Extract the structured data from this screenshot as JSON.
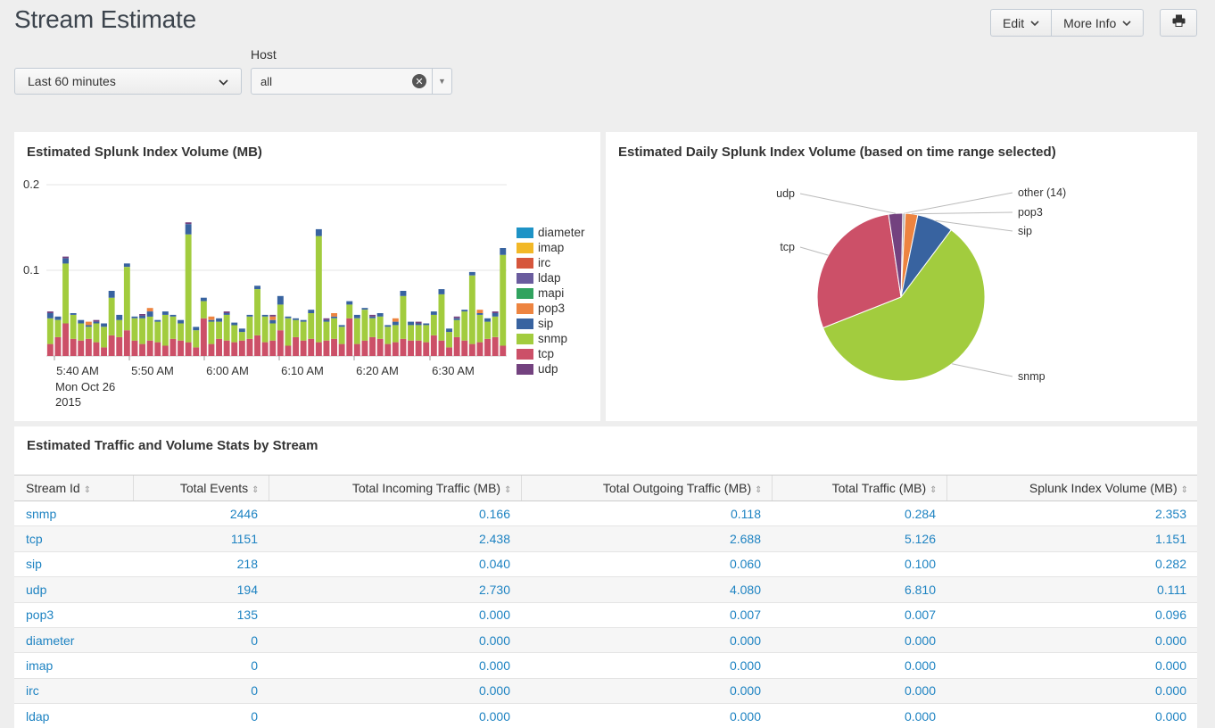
{
  "header": {
    "title": "Stream Estimate",
    "edit_label": "Edit",
    "more_info_label": "More Info"
  },
  "filters": {
    "time_range": "Last 60 minutes",
    "host_label": "Host",
    "host_value": "all"
  },
  "volume_panel": {
    "title": "Estimated Splunk Index Volume (MB)"
  },
  "pie_panel": {
    "title": "Estimated Daily Splunk Index Volume (based on time range selected)"
  },
  "table_panel": {
    "title": "Estimated Traffic and Volume Stats by Stream",
    "columns": [
      "Stream Id",
      "Total Events",
      "Total Incoming Traffic (MB)",
      "Total Outgoing Traffic (MB)",
      "Total Traffic (MB)",
      "Splunk Index Volume (MB)"
    ],
    "rows": [
      [
        "snmp",
        "2446",
        "0.166",
        "0.118",
        "0.284",
        "2.353"
      ],
      [
        "tcp",
        "1151",
        "2.438",
        "2.688",
        "5.126",
        "1.151"
      ],
      [
        "sip",
        "218",
        "0.040",
        "0.060",
        "0.100",
        "0.282"
      ],
      [
        "udp",
        "194",
        "2.730",
        "4.080",
        "6.810",
        "0.111"
      ],
      [
        "pop3",
        "135",
        "0.000",
        "0.007",
        "0.007",
        "0.096"
      ],
      [
        "diameter",
        "0",
        "0.000",
        "0.000",
        "0.000",
        "0.000"
      ],
      [
        "imap",
        "0",
        "0.000",
        "0.000",
        "0.000",
        "0.000"
      ],
      [
        "irc",
        "0",
        "0.000",
        "0.000",
        "0.000",
        "0.000"
      ],
      [
        "ldap",
        "0",
        "0.000",
        "0.000",
        "0.000",
        "0.000"
      ]
    ]
  },
  "colors": {
    "diameter": "#1e93c6",
    "imap": "#f2b827",
    "irc": "#d6563c",
    "ldap": "#6a5c9e",
    "mapi": "#31a35f",
    "pop3": "#ed8440",
    "sip": "#3863a0",
    "snmp": "#a2cc3e",
    "tcp": "#cc5068",
    "udp": "#73427f",
    "link": "#1e83c2"
  },
  "chart_data": [
    {
      "type": "bar",
      "stacked": true,
      "title": "Estimated Splunk Index Volume (MB)",
      "ylim": [
        0,
        0.2
      ],
      "yticks": [
        "0.2",
        "0.1"
      ],
      "x_tick_labels": [
        "5:40 AM",
        "5:50 AM",
        "6:00 AM",
        "6:10 AM",
        "6:20 AM",
        "6:30 AM"
      ],
      "x_date_label": [
        "Mon Oct 26",
        "2015"
      ],
      "legend": [
        "diameter",
        "imap",
        "irc",
        "ldap",
        "mapi",
        "pop3",
        "sip",
        "snmp",
        "tcp",
        "udp"
      ],
      "legend_position": "right",
      "series": [
        {
          "name": "tcp",
          "values": [
            0.014,
            0.022,
            0.038,
            0.02,
            0.018,
            0.02,
            0.016,
            0.01,
            0.024,
            0.022,
            0.03,
            0.018,
            0.014,
            0.018,
            0.016,
            0.012,
            0.02,
            0.018,
            0.016,
            0.01,
            0.044,
            0.014,
            0.02,
            0.018,
            0.016,
            0.018,
            0.02,
            0.024,
            0.016,
            0.018,
            0.03,
            0.012,
            0.022,
            0.018,
            0.02,
            0.016,
            0.018,
            0.02,
            0.014,
            0.044,
            0.014,
            0.018,
            0.022,
            0.02,
            0.014,
            0.016,
            0.02,
            0.018,
            0.018,
            0.016,
            0.024,
            0.018,
            0.01,
            0.022,
            0.018,
            0.014,
            0.016,
            0.02,
            0.022,
            0.012
          ]
        },
        {
          "name": "snmp",
          "values": [
            0.03,
            0.02,
            0.07,
            0.028,
            0.02,
            0.014,
            0.022,
            0.024,
            0.044,
            0.02,
            0.074,
            0.026,
            0.03,
            0.028,
            0.024,
            0.036,
            0.026,
            0.02,
            0.126,
            0.02,
            0.02,
            0.026,
            0.02,
            0.03,
            0.02,
            0.01,
            0.026,
            0.054,
            0.03,
            0.02,
            0.03,
            0.032,
            0.02,
            0.022,
            0.03,
            0.124,
            0.022,
            0.024,
            0.02,
            0.016,
            0.03,
            0.036,
            0.022,
            0.026,
            0.02,
            0.02,
            0.05,
            0.018,
            0.018,
            0.02,
            0.024,
            0.054,
            0.018,
            0.02,
            0.034,
            0.08,
            0.032,
            0.02,
            0.024,
            0.106
          ]
        },
        {
          "name": "sip",
          "values": [
            0.006,
            0.004,
            0.006,
            0.002,
            0.004,
            0.002,
            0.002,
            0.004,
            0.008,
            0.006,
            0.004,
            0.002,
            0.003,
            0.006,
            0.002,
            0.004,
            0.002,
            0.004,
            0.012,
            0.004,
            0.004,
            0.002,
            0.004,
            0.002,
            0.003,
            0.004,
            0.002,
            0.004,
            0.002,
            0.004,
            0.01,
            0.002,
            0.002,
            0.002,
            0.004,
            0.008,
            0.002,
            0.002,
            0.002,
            0.004,
            0.004,
            0.002,
            0.002,
            0.004,
            0.002,
            0.004,
            0.006,
            0.004,
            0.002,
            0.002,
            0.004,
            0.006,
            0.004,
            0.002,
            0.002,
            0.004,
            0.002,
            0.004,
            0.004,
            0.008
          ]
        },
        {
          "name": "pop3",
          "values": [
            0,
            0,
            0,
            0,
            0,
            0.004,
            0,
            0,
            0,
            0,
            0,
            0,
            0,
            0.004,
            0,
            0,
            0,
            0,
            0,
            0,
            0,
            0.004,
            0,
            0,
            0,
            0,
            0,
            0,
            0,
            0.004,
            0,
            0,
            0,
            0,
            0,
            0,
            0,
            0.004,
            0,
            0,
            0,
            0,
            0,
            0,
            0,
            0.004,
            0,
            0,
            0,
            0,
            0,
            0,
            0,
            0,
            0,
            0,
            0.004,
            0,
            0,
            0
          ]
        },
        {
          "name": "udp",
          "values": [
            0.002,
            0,
            0.002,
            0,
            0,
            0,
            0.002,
            0,
            0,
            0,
            0,
            0,
            0.002,
            0,
            0,
            0,
            0,
            0,
            0.002,
            0,
            0,
            0,
            0,
            0.002,
            0,
            0,
            0,
            0,
            0,
            0.002,
            0,
            0,
            0,
            0,
            0,
            0,
            0.002,
            0,
            0,
            0,
            0,
            0,
            0.002,
            0,
            0,
            0,
            0,
            0,
            0.002,
            0,
            0,
            0,
            0,
            0.002,
            0,
            0,
            0,
            0,
            0.002,
            0
          ]
        }
      ]
    },
    {
      "type": "pie",
      "title": "Estimated Daily Splunk Index Volume (based on time range selected)",
      "labels": [
        "other (14)",
        "pop3",
        "sip",
        "snmp",
        "tcp",
        "udp"
      ],
      "values": [
        0.5,
        2.4,
        7.0,
        58.8,
        28.6,
        2.7
      ]
    }
  ]
}
